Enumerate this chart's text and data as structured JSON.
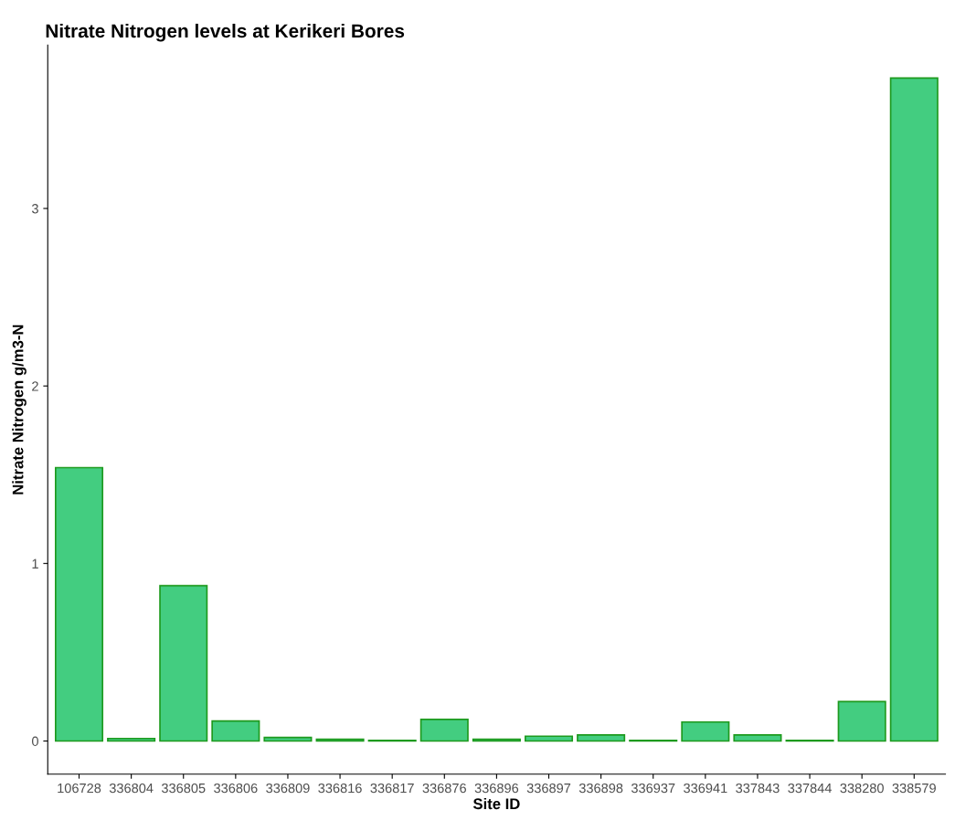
{
  "chart_data": {
    "type": "bar",
    "title": "Nitrate Nitrogen levels at Kerikeri Bores",
    "xlabel": "Site ID",
    "ylabel": "Nitrate Nitrogen g/m3-N",
    "categories": [
      "106728",
      "336804",
      "336805",
      "336806",
      "336809",
      "336816",
      "336817",
      "336876",
      "336896",
      "336897",
      "336898",
      "336937",
      "336941",
      "337843",
      "337844",
      "338280",
      "338579"
    ],
    "values": [
      1.54,
      0.014,
      0.875,
      0.113,
      0.02,
      0.01,
      0.003,
      0.122,
      0.01,
      0.027,
      0.034,
      0.003,
      0.107,
      0.034,
      0.003,
      0.222,
      3.735
    ],
    "color": "#43cd80",
    "ylim": [
      -0.187,
      3.92
    ],
    "yticks": [
      0,
      1,
      2,
      3
    ],
    "grid": false
  }
}
